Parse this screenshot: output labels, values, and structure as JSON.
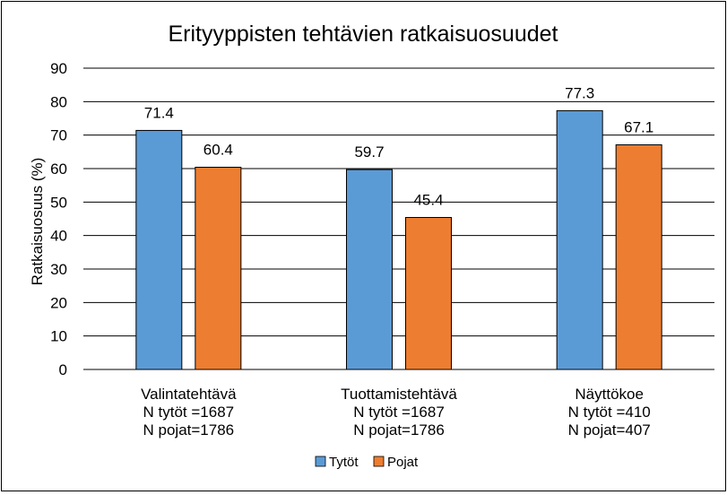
{
  "chart_data": {
    "type": "bar",
    "title": "Erityyppisten tehtävien ratkaisuosuudet",
    "xlabel": "",
    "ylabel": "Ratkaisuosuus (%)",
    "ylim": [
      0,
      90
    ],
    "yticks": [
      0,
      10,
      20,
      30,
      40,
      50,
      60,
      70,
      80,
      90
    ],
    "grid": true,
    "legend_position": "bottom",
    "categories": [
      [
        "Valintatehtävä",
        "N tytöt =1687",
        "N pojat=1786"
      ],
      [
        "Tuottamistehtävä",
        "N tytöt =1687",
        "N pojat=1786"
      ],
      [
        "Näyttökoe",
        "N tytöt =410",
        "N pojat=407"
      ]
    ],
    "series": [
      {
        "name": "Tytöt",
        "color": "#5B9BD5",
        "values": [
          71.4,
          59.7,
          77.3
        ]
      },
      {
        "name": "Pojat",
        "color": "#ED7D31",
        "values": [
          60.4,
          45.4,
          67.1
        ]
      }
    ]
  }
}
